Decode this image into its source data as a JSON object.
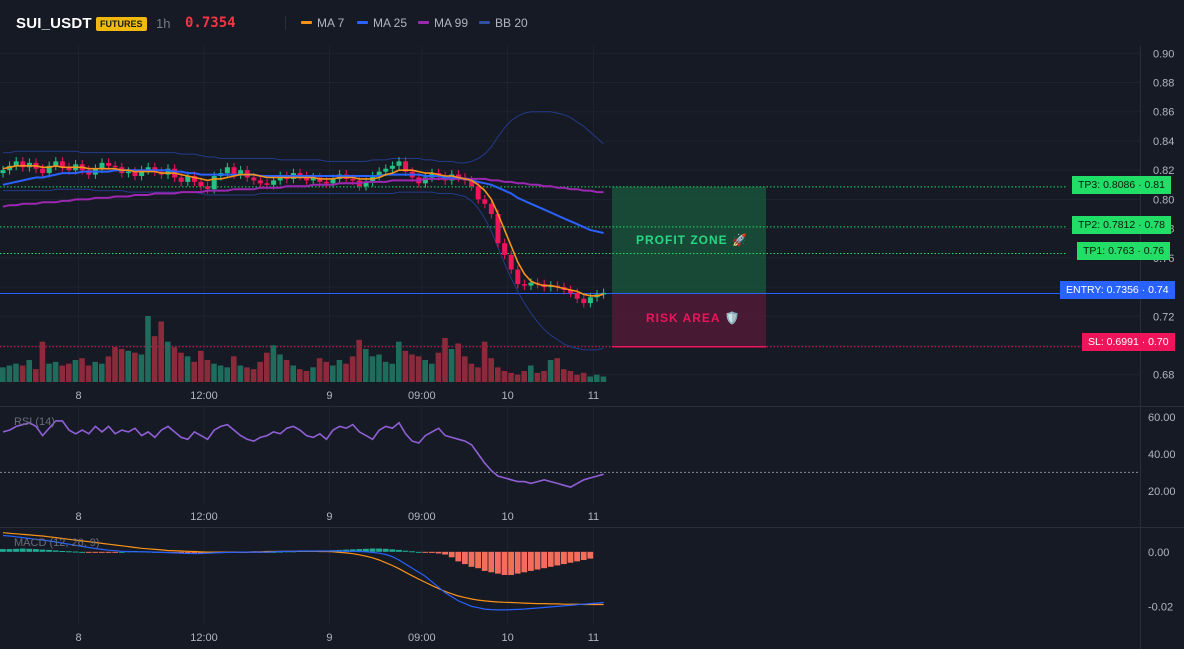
{
  "header": {
    "symbol": "SUI_USDT",
    "badge": "FUTURES",
    "timeframe": "1h",
    "price": "0.7354"
  },
  "legend": [
    {
      "label": "MA 7",
      "color": "#f7931a"
    },
    {
      "label": "MA 25",
      "color": "#2962ff"
    },
    {
      "label": "MA 99",
      "color": "#9c27b0"
    },
    {
      "label": "BB 20",
      "color": "#1e3a8a"
    }
  ],
  "levels": {
    "tp3": {
      "label": "TP3: 0.8086 · 0.81",
      "value": 0.8086,
      "color": "#22dd66"
    },
    "tp2": {
      "label": "TP2: 0.7812 · 0.78",
      "value": 0.7812,
      "color": "#22dd66"
    },
    "tp1": {
      "label": "TP1: 0.763 · 0.76",
      "value": 0.763,
      "color": "#22dd66"
    },
    "entry": {
      "label": "ENTRY: 0.7356 · 0.74",
      "value": 0.7356,
      "color": "#2962ff"
    },
    "sl": {
      "label": "SL: 0.6991 · 0.70",
      "value": 0.6991,
      "color": "#f0145a"
    }
  },
  "zones": {
    "profit": "PROFIT ZONE 🚀",
    "risk": "RISK AREA 🛡️"
  },
  "chart_data": [
    {
      "type": "candlestick",
      "panel": "price",
      "x_ticks": [
        "8",
        "12:00",
        "9",
        "09:00",
        "10",
        "11"
      ],
      "y_ticks": [
        "0.90",
        "0.88",
        "0.86",
        "0.84",
        "0.82",
        "0.80",
        "0.78",
        "0.76",
        "0.74",
        "0.72",
        "0.70",
        "0.68"
      ],
      "ylim": [
        0.675,
        0.905
      ],
      "close": [
        0.82,
        0.823,
        0.826,
        0.822,
        0.825,
        0.821,
        0.818,
        0.823,
        0.826,
        0.822,
        0.82,
        0.824,
        0.82,
        0.817,
        0.821,
        0.825,
        0.823,
        0.822,
        0.818,
        0.819,
        0.816,
        0.82,
        0.822,
        0.819,
        0.817,
        0.821,
        0.815,
        0.812,
        0.816,
        0.812,
        0.809,
        0.807,
        0.816,
        0.818,
        0.822,
        0.817,
        0.82,
        0.815,
        0.813,
        0.811,
        0.81,
        0.813,
        0.816,
        0.814,
        0.818,
        0.816,
        0.813,
        0.815,
        0.812,
        0.811,
        0.814,
        0.817,
        0.814,
        0.813,
        0.809,
        0.812,
        0.816,
        0.819,
        0.821,
        0.823,
        0.826,
        0.819,
        0.815,
        0.811,
        0.815,
        0.818,
        0.816,
        0.813,
        0.817,
        0.815,
        0.813,
        0.809,
        0.8,
        0.797,
        0.79,
        0.77,
        0.762,
        0.752,
        0.742,
        0.741,
        0.743,
        0.742,
        0.74,
        0.741,
        0.74,
        0.738,
        0.736,
        0.732,
        0.729,
        0.733,
        0.735,
        0.736
      ],
      "volume": [
        8,
        9,
        10,
        9,
        12,
        7,
        22,
        10,
        11,
        9,
        10,
        12,
        13,
        9,
        11,
        10,
        14,
        19,
        18,
        17,
        16,
        15,
        36,
        25,
        33,
        22,
        19,
        16,
        14,
        11,
        17,
        12,
        10,
        9,
        8,
        14,
        9,
        8,
        7,
        11,
        16,
        20,
        15,
        12,
        9,
        7,
        6,
        8,
        13,
        11,
        9,
        12,
        10,
        14,
        23,
        18,
        14,
        15,
        11,
        10,
        22,
        17,
        15,
        14,
        12,
        10,
        16,
        24,
        18,
        21,
        14,
        10,
        8,
        22,
        13,
        8,
        6,
        5,
        4,
        6,
        9,
        5,
        6,
        12,
        13,
        7,
        6,
        4,
        5,
        3,
        4,
        3
      ],
      "ma7": [
        0.821,
        0.822,
        0.823,
        0.823,
        0.823,
        0.823,
        0.822,
        0.822,
        0.823,
        0.822,
        0.822,
        0.822,
        0.822,
        0.821,
        0.821,
        0.821,
        0.821,
        0.821,
        0.82,
        0.82,
        0.819,
        0.819,
        0.819,
        0.819,
        0.818,
        0.818,
        0.818,
        0.817,
        0.816,
        0.815,
        0.814,
        0.813,
        0.814,
        0.814,
        0.815,
        0.816,
        0.817,
        0.817,
        0.817,
        0.816,
        0.815,
        0.815,
        0.815,
        0.815,
        0.815,
        0.815,
        0.815,
        0.815,
        0.814,
        0.814,
        0.814,
        0.815,
        0.815,
        0.815,
        0.814,
        0.814,
        0.814,
        0.815,
        0.817,
        0.818,
        0.82,
        0.82,
        0.82,
        0.819,
        0.818,
        0.818,
        0.817,
        0.816,
        0.816,
        0.815,
        0.814,
        0.813,
        0.81,
        0.806,
        0.8,
        0.79,
        0.779,
        0.768,
        0.757,
        0.749,
        0.744,
        0.742,
        0.741,
        0.741,
        0.74,
        0.739,
        0.738,
        0.737,
        0.735,
        0.734,
        0.734,
        0.735
      ],
      "ma25": [
        0.81,
        0.811,
        0.812,
        0.813,
        0.814,
        0.815,
        0.815,
        0.816,
        0.817,
        0.818,
        0.818,
        0.818,
        0.819,
        0.819,
        0.819,
        0.819,
        0.819,
        0.82,
        0.82,
        0.82,
        0.82,
        0.82,
        0.82,
        0.82,
        0.82,
        0.82,
        0.819,
        0.819,
        0.818,
        0.818,
        0.817,
        0.817,
        0.817,
        0.817,
        0.817,
        0.817,
        0.817,
        0.817,
        0.817,
        0.816,
        0.816,
        0.816,
        0.816,
        0.816,
        0.816,
        0.816,
        0.816,
        0.816,
        0.816,
        0.816,
        0.816,
        0.816,
        0.816,
        0.816,
        0.816,
        0.816,
        0.816,
        0.816,
        0.817,
        0.817,
        0.817,
        0.817,
        0.817,
        0.817,
        0.816,
        0.816,
        0.816,
        0.815,
        0.815,
        0.815,
        0.814,
        0.813,
        0.812,
        0.811,
        0.81,
        0.808,
        0.806,
        0.804,
        0.801,
        0.799,
        0.797,
        0.795,
        0.793,
        0.791,
        0.789,
        0.787,
        0.785,
        0.783,
        0.781,
        0.779,
        0.778,
        0.777
      ],
      "ma99": [
        0.795,
        0.796,
        0.796,
        0.797,
        0.797,
        0.797,
        0.798,
        0.798,
        0.798,
        0.799,
        0.799,
        0.8,
        0.8,
        0.8,
        0.801,
        0.801,
        0.801,
        0.802,
        0.802,
        0.802,
        0.803,
        0.803,
        0.803,
        0.804,
        0.804,
        0.804,
        0.804,
        0.805,
        0.805,
        0.805,
        0.805,
        0.806,
        0.806,
        0.806,
        0.806,
        0.807,
        0.807,
        0.807,
        0.807,
        0.808,
        0.808,
        0.808,
        0.808,
        0.809,
        0.809,
        0.809,
        0.809,
        0.81,
        0.81,
        0.81,
        0.81,
        0.811,
        0.811,
        0.811,
        0.811,
        0.812,
        0.812,
        0.812,
        0.812,
        0.813,
        0.813,
        0.813,
        0.813,
        0.813,
        0.814,
        0.814,
        0.814,
        0.814,
        0.814,
        0.814,
        0.814,
        0.814,
        0.814,
        0.814,
        0.813,
        0.813,
        0.812,
        0.812,
        0.811,
        0.811,
        0.81,
        0.81,
        0.809,
        0.809,
        0.808,
        0.808,
        0.807,
        0.807,
        0.806,
        0.806,
        0.805,
        0.805
      ],
      "bb_upper": [
        0.832,
        0.832,
        0.833,
        0.833,
        0.833,
        0.833,
        0.833,
        0.833,
        0.833,
        0.833,
        0.833,
        0.833,
        0.832,
        0.832,
        0.832,
        0.832,
        0.832,
        0.832,
        0.832,
        0.832,
        0.832,
        0.832,
        0.832,
        0.832,
        0.832,
        0.832,
        0.832,
        0.831,
        0.831,
        0.831,
        0.83,
        0.829,
        0.829,
        0.828,
        0.828,
        0.828,
        0.828,
        0.828,
        0.828,
        0.828,
        0.828,
        0.828,
        0.827,
        0.827,
        0.827,
        0.827,
        0.827,
        0.827,
        0.827,
        0.826,
        0.826,
        0.826,
        0.826,
        0.826,
        0.826,
        0.826,
        0.827,
        0.827,
        0.827,
        0.828,
        0.828,
        0.828,
        0.828,
        0.828,
        0.827,
        0.827,
        0.826,
        0.826,
        0.826,
        0.825,
        0.825,
        0.826,
        0.828,
        0.831,
        0.836,
        0.843,
        0.849,
        0.854,
        0.857,
        0.859,
        0.86,
        0.86,
        0.86,
        0.86,
        0.859,
        0.858,
        0.856,
        0.853,
        0.85,
        0.846,
        0.842,
        0.838
      ],
      "bb_lower": [
        0.806,
        0.806,
        0.806,
        0.806,
        0.806,
        0.806,
        0.806,
        0.806,
        0.807,
        0.807,
        0.807,
        0.807,
        0.807,
        0.807,
        0.806,
        0.806,
        0.806,
        0.806,
        0.806,
        0.805,
        0.805,
        0.805,
        0.805,
        0.805,
        0.805,
        0.805,
        0.805,
        0.805,
        0.805,
        0.805,
        0.804,
        0.803,
        0.803,
        0.803,
        0.803,
        0.803,
        0.803,
        0.803,
        0.803,
        0.804,
        0.804,
        0.804,
        0.804,
        0.804,
        0.804,
        0.804,
        0.804,
        0.804,
        0.804,
        0.804,
        0.804,
        0.804,
        0.804,
        0.804,
        0.804,
        0.804,
        0.804,
        0.804,
        0.804,
        0.804,
        0.805,
        0.805,
        0.805,
        0.805,
        0.805,
        0.805,
        0.804,
        0.804,
        0.804,
        0.803,
        0.802,
        0.799,
        0.794,
        0.787,
        0.778,
        0.767,
        0.756,
        0.746,
        0.737,
        0.729,
        0.722,
        0.716,
        0.711,
        0.707,
        0.704,
        0.701,
        0.699,
        0.698,
        0.697,
        0.697,
        0.697,
        0.698
      ]
    },
    {
      "type": "line",
      "panel": "rsi",
      "title": "RSI (14)",
      "y_ticks": [
        "60.00",
        "40.00",
        "20.00"
      ],
      "ylim": [
        15,
        65
      ],
      "reference": 30,
      "values": [
        52,
        53,
        55,
        56,
        57,
        55,
        50,
        54,
        58,
        58,
        53,
        51,
        53,
        51,
        55,
        52,
        55,
        51,
        53,
        52,
        54,
        50,
        52,
        49,
        53,
        55,
        52,
        49,
        48,
        52,
        50,
        48,
        53,
        55,
        56,
        53,
        50,
        48,
        47,
        49,
        50,
        52,
        51,
        54,
        55,
        53,
        50,
        49,
        51,
        48,
        53,
        55,
        54,
        56,
        52,
        50,
        48,
        53,
        55,
        54,
        57,
        51,
        47,
        46,
        50,
        52,
        54,
        50,
        49,
        48,
        47,
        45,
        40,
        35,
        31,
        28,
        27,
        26,
        25,
        25,
        24,
        25,
        26,
        25,
        24,
        23,
        22,
        24,
        26,
        27,
        28,
        29
      ]
    },
    {
      "type": "bar",
      "panel": "macd",
      "title": "MACD (12, 26, 9)",
      "y_ticks": [
        "0.00",
        "-0.02"
      ],
      "ylim": [
        -0.025,
        0.008
      ],
      "histogram": [
        0.001,
        0.001,
        0.0011,
        0.0012,
        0.0011,
        0.001,
        0.0008,
        0.0007,
        0.0005,
        0.0003,
        0.0002,
        0.0001,
        0.0,
        -0.0001,
        -0.0002,
        -0.0003,
        -0.0002,
        -0.0001,
        0.0,
        0.0002,
        0.0003,
        0.0002,
        0.0001,
        0.0,
        -0.0001,
        -0.0002,
        -0.0003,
        -0.0005,
        -0.0006,
        -0.0006,
        -0.0006,
        -0.0005,
        -0.0004,
        -0.0003,
        -0.0002,
        -0.0002,
        -0.0001,
        -0.0001,
        -0.0001,
        -0.0001,
        -0.0001,
        0.0,
        0.0001,
        0.0002,
        0.0002,
        0.0003,
        0.0003,
        0.0004,
        0.0004,
        0.0005,
        0.0006,
        0.0007,
        0.0008,
        0.0009,
        0.001,
        0.0011,
        0.0012,
        0.0012,
        0.0011,
        0.0009,
        0.0007,
        0.0004,
        0.0002,
        0.0,
        -0.0002,
        -0.0004,
        -0.0006,
        -0.001,
        -0.002,
        -0.0035,
        -0.0045,
        -0.0055,
        -0.006,
        -0.007,
        -0.0075,
        -0.008,
        -0.0085,
        -0.0085,
        -0.008,
        -0.0075,
        -0.007,
        -0.0065,
        -0.006,
        -0.0055,
        -0.005,
        -0.0045,
        -0.004,
        -0.0035,
        -0.003,
        -0.0025
      ],
      "macd_line": [
        0.006,
        0.0058,
        0.0055,
        0.0052,
        0.0049,
        0.0046,
        0.0043,
        0.004,
        0.0036,
        0.0032,
        0.0028,
        0.0024,
        0.002,
        0.0016,
        0.0012,
        0.0009,
        0.0006,
        0.0004,
        0.0002,
        0.0001,
        0.0,
        0.0,
        0.0,
        -0.0001,
        -0.0002,
        -0.0003,
        -0.0004,
        -0.0005,
        -0.0006,
        -0.0006,
        -0.0006,
        -0.0005,
        -0.0004,
        -0.0003,
        -0.0002,
        -0.0002,
        -0.0001,
        -0.0001,
        -0.0001,
        -0.0001,
        -0.0001,
        0.0,
        0.0001,
        0.0002,
        0.0002,
        0.0003,
        0.0003,
        0.0003,
        0.0003,
        0.0003,
        0.0003,
        0.0003,
        0.0002,
        0.0002,
        0.0001,
        0.0,
        -0.0002,
        -0.0005,
        -0.001,
        -0.0018,
        -0.003,
        -0.0045,
        -0.006,
        -0.0075,
        -0.009,
        -0.011,
        -0.013,
        -0.015,
        -0.0165,
        -0.018,
        -0.019,
        -0.02,
        -0.0205,
        -0.021,
        -0.0212,
        -0.0213,
        -0.0213,
        -0.0212,
        -0.0211,
        -0.021,
        -0.0208,
        -0.0206,
        -0.0204,
        -0.0202,
        -0.02,
        -0.0198,
        -0.0196,
        -0.0194,
        -0.0192,
        -0.019,
        -0.0188,
        -0.0186
      ],
      "signal_line": [
        0.007,
        0.0068,
        0.0066,
        0.0064,
        0.0062,
        0.006,
        0.0058,
        0.0055,
        0.0052,
        0.0049,
        0.0046,
        0.0043,
        0.004,
        0.0037,
        0.0034,
        0.0031,
        0.0028,
        0.0025,
        0.0022,
        0.0019,
        0.0016,
        0.0013,
        0.0011,
        0.0009,
        0.0007,
        0.0005,
        0.0004,
        0.0003,
        0.0002,
        0.0001,
        0.0,
        -0.0001,
        -0.0001,
        -0.0001,
        -0.0001,
        -0.0001,
        -0.0001,
        -0.0001,
        0.0,
        0.0,
        0.0001,
        0.0001,
        0.0002,
        0.0002,
        0.0002,
        0.0002,
        0.0002,
        0.0002,
        0.0001,
        0.0001,
        0.0,
        -0.0002,
        -0.0004,
        -0.0007,
        -0.0011,
        -0.0016,
        -0.0022,
        -0.003,
        -0.004,
        -0.005,
        -0.0062,
        -0.0075,
        -0.0088,
        -0.01,
        -0.0112,
        -0.0124,
        -0.0135,
        -0.0145,
        -0.0154,
        -0.0162,
        -0.0168,
        -0.0173,
        -0.0177,
        -0.018,
        -0.0182,
        -0.0184,
        -0.0185,
        -0.0186,
        -0.0187,
        -0.0188,
        -0.0189,
        -0.019,
        -0.019,
        -0.0191,
        -0.0191,
        -0.0192,
        -0.0192,
        -0.0192,
        -0.0193,
        -0.0193,
        -0.0193,
        -0.0193
      ]
    }
  ]
}
